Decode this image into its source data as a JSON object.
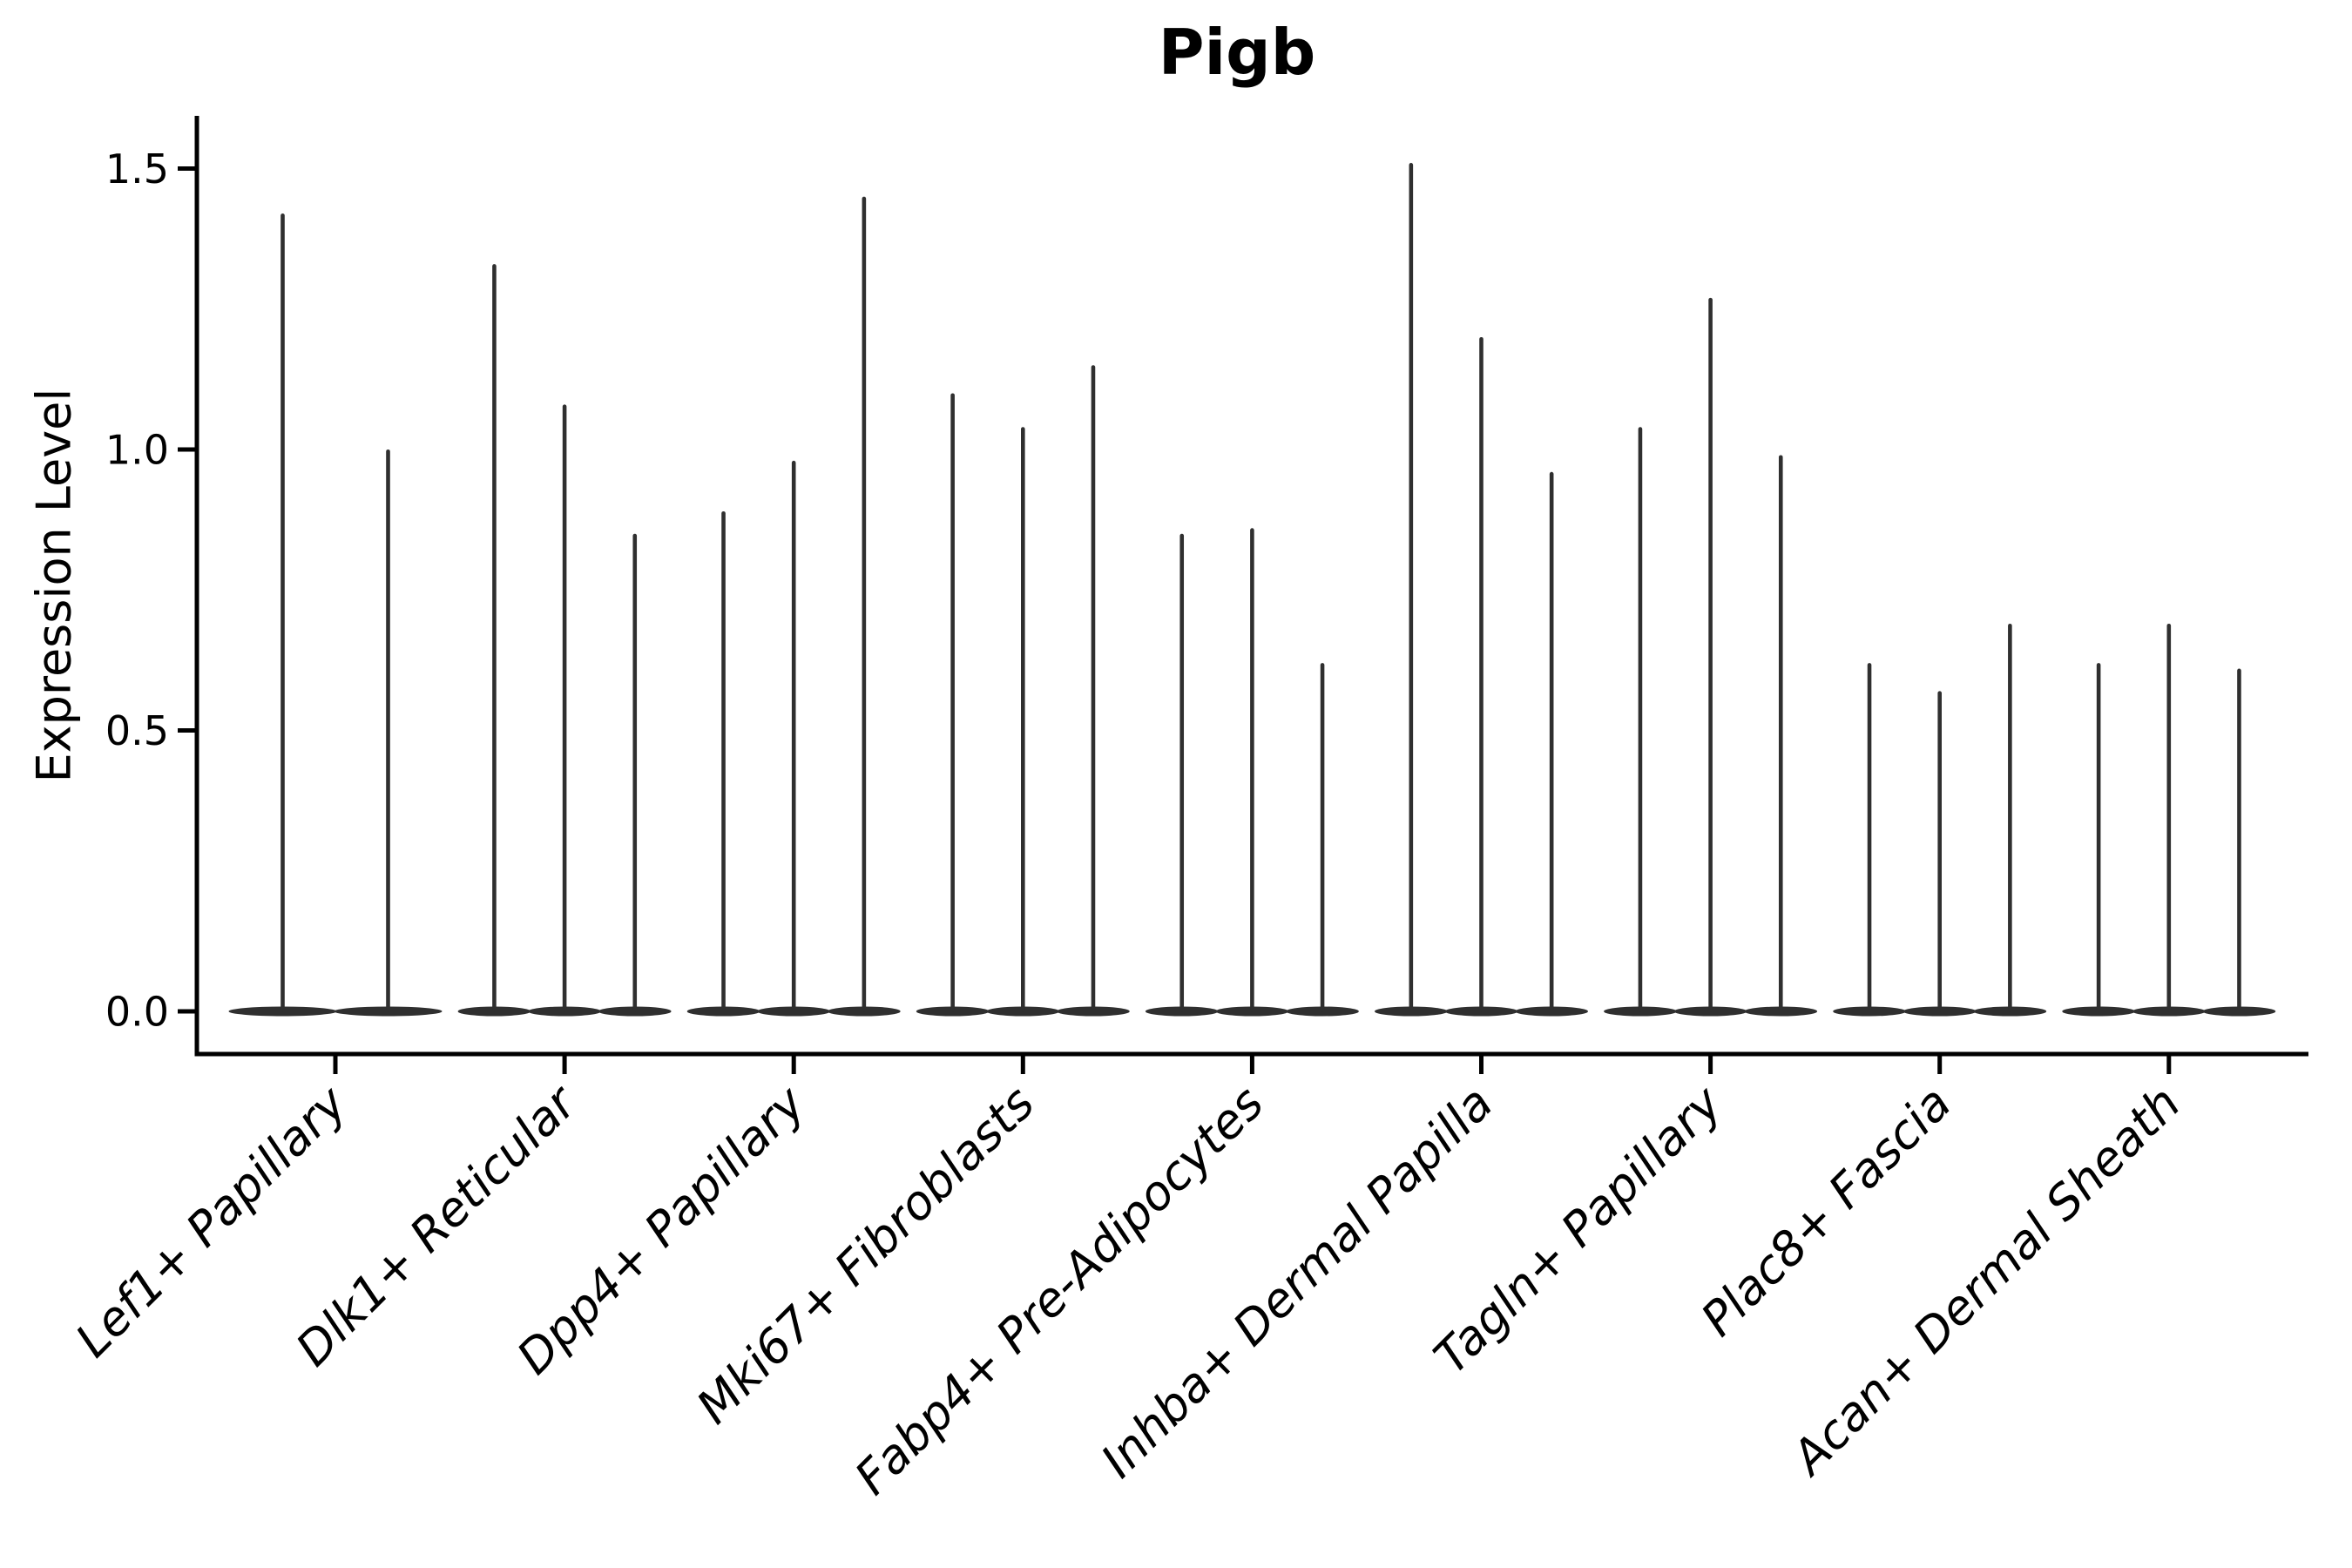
{
  "title": "Pigb",
  "ylabel": "Expression Level",
  "chart_data": {
    "type": "violin",
    "title": "Pigb",
    "xlabel": "",
    "ylabel": "Expression Level",
    "ylim": [
      -0.08,
      1.59
    ],
    "yticks": [
      0.0,
      0.5,
      1.0,
      1.5
    ],
    "ytick_labels": [
      "0.0",
      "0.5",
      "1.0",
      "1.5"
    ],
    "grid": false,
    "legend": "none",
    "description": "Single-cell expression violin plot; each violin is a wide flat bulk at 0 expression with a thin density spike rising to the maximum expression value.",
    "categories": [
      "Lef1+ Papillary",
      "Dlk1+ Reticular",
      "Dpp4+ Papillary",
      "Mki67+ Fibroblasts",
      "Fabp4+ Pre-Adipocytes",
      "Inhba+ Dermal Papilla",
      "Tagln+ Papillary",
      "Plac8+ Fascia",
      "Acan+ Dermal Sheath"
    ],
    "groups": [
      {
        "label": "Lef1+ Papillary",
        "violin_maxima": [
          1.42,
          1.0
        ]
      },
      {
        "label": "Dlk1+ Reticular",
        "violin_maxima": [
          1.33,
          1.08,
          0.85
        ]
      },
      {
        "label": "Dpp4+ Papillary",
        "violin_maxima": [
          0.89,
          0.98,
          1.45
        ]
      },
      {
        "label": "Mki67+ Fibroblasts",
        "violin_maxima": [
          1.1,
          1.04,
          1.15
        ]
      },
      {
        "label": "Fabp4+ Pre-Adipocytes",
        "violin_maxima": [
          0.85,
          0.86,
          0.62
        ]
      },
      {
        "label": "Inhba+ Dermal Papilla",
        "violin_maxima": [
          1.51,
          1.2,
          0.96
        ]
      },
      {
        "label": "Tagln+ Papillary",
        "violin_maxima": [
          1.04,
          1.27,
          0.99
        ]
      },
      {
        "label": "Plac8+ Fascia",
        "violin_maxima": [
          0.62,
          0.57,
          0.69
        ]
      },
      {
        "label": "Acan+ Dermal Sheath",
        "violin_maxima": [
          0.62,
          0.69,
          0.61
        ]
      }
    ],
    "colors": {
      "violin": "#2f2f2f",
      "axis": "#000000",
      "text": "#000000",
      "background": "#ffffff"
    }
  }
}
